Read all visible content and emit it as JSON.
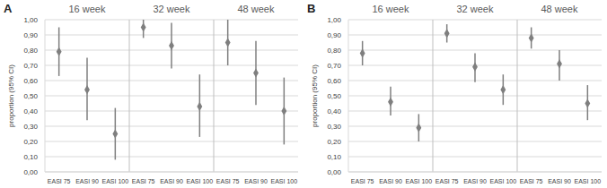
{
  "chart_data": [
    {
      "type": "scatter",
      "title": "A",
      "y_label": "proportion (95% CI)",
      "x_groups": [
        "16 week",
        "32 week",
        "48 week"
      ],
      "categories": [
        "EASI 75",
        "EASI 90",
        "EASI 100",
        "EASI 75",
        "EASI 90",
        "EASI 100",
        "EASI 75",
        "EASI 90",
        "EASI 100"
      ],
      "values": [
        0.79,
        0.54,
        0.25,
        0.95,
        0.83,
        0.43,
        0.85,
        0.65,
        0.4
      ],
      "ci_low": [
        0.63,
        0.34,
        0.08,
        0.88,
        0.68,
        0.23,
        0.7,
        0.44,
        0.18
      ],
      "ci_high": [
        0.95,
        0.75,
        0.42,
        1.0,
        0.98,
        0.64,
        1.0,
        0.86,
        0.62
      ],
      "color": "#7f7f7f",
      "marker": "diamond",
      "grid": true,
      "ylim": [
        0,
        1
      ],
      "yticks": [
        {
          "value": 0,
          "label": "0,00"
        },
        {
          "value": 0.1,
          "label": "0,10"
        },
        {
          "value": 0.2,
          "label": "0,20"
        },
        {
          "value": 0.3,
          "label": "0,30"
        },
        {
          "value": 0.4,
          "label": "0,40"
        },
        {
          "value": 0.5,
          "label": "0,50"
        },
        {
          "value": 0.6,
          "label": "0,60"
        },
        {
          "value": 0.7,
          "label": "0,70"
        },
        {
          "value": 0.8,
          "label": "0,80"
        },
        {
          "value": 0.9,
          "label": "0,90"
        },
        {
          "value": 1,
          "label": "1,00"
        }
      ]
    },
    {
      "type": "scatter",
      "title": "B",
      "y_label": "proportion (95% CI)",
      "x_groups": [
        "16 week",
        "32 week",
        "48 week"
      ],
      "categories": [
        "EASI 75",
        "EASI 90",
        "EASI 100",
        "EASI 75",
        "EASI 90",
        "EASI 100",
        "EASI 75",
        "EASI 90",
        "EASI 100"
      ],
      "values": [
        0.78,
        0.46,
        0.29,
        0.91,
        0.69,
        0.54,
        0.88,
        0.71,
        0.45
      ],
      "ci_low": [
        0.7,
        0.37,
        0.2,
        0.85,
        0.59,
        0.44,
        0.81,
        0.6,
        0.34
      ],
      "ci_high": [
        0.86,
        0.56,
        0.38,
        0.97,
        0.78,
        0.64,
        0.95,
        0.8,
        0.57
      ],
      "color": "#7f7f7f",
      "marker": "diamond",
      "grid": true,
      "ylim": [
        0,
        1
      ],
      "yticks": [
        {
          "value": 0,
          "label": "0,00"
        },
        {
          "value": 0.1,
          "label": "0,10"
        },
        {
          "value": 0.2,
          "label": "0,20"
        },
        {
          "value": 0.3,
          "label": "0,30"
        },
        {
          "value": 0.4,
          "label": "0,40"
        },
        {
          "value": 0.5,
          "label": "0,50"
        },
        {
          "value": 0.6,
          "label": "0,60"
        },
        {
          "value": 0.7,
          "label": "0,70"
        },
        {
          "value": 0.8,
          "label": "0,80"
        },
        {
          "value": 0.9,
          "label": "0,90"
        },
        {
          "value": 1,
          "label": "1,00"
        }
      ]
    }
  ]
}
